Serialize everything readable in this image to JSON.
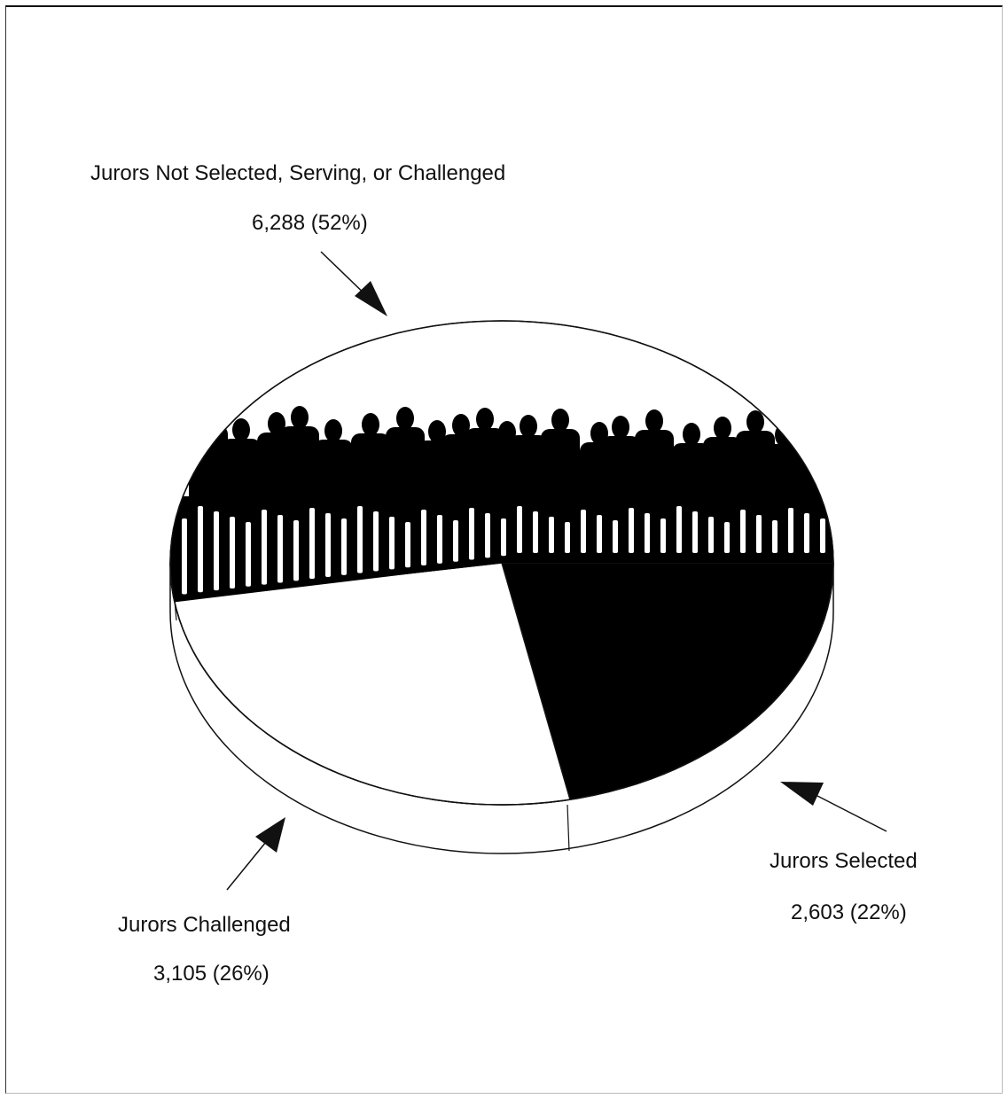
{
  "chart_data": {
    "type": "pie",
    "categories": [
      "Jurors Not Selected, Serving, or Challenged",
      "Jurors Selected",
      "Jurors Challenged"
    ],
    "values": [
      6288,
      2603,
      3105
    ],
    "percent_labels": [
      "(52%)",
      "(22%)",
      "(26%)"
    ],
    "value_labels": [
      "6,288",
      "2,603",
      "3,105"
    ],
    "slice_fill": [
      "people-silhouettes",
      "#000000",
      "#ffffff"
    ],
    "legend": "none",
    "style": "3d-tilted"
  },
  "labels": {
    "not_selected_title": "Jurors Not Selected, Serving, or Challenged",
    "not_selected_value": "6,288  (52%)",
    "selected_title": "Jurors Selected",
    "selected_value": "2,603  (22%)",
    "challenged_title": "Jurors Challenged",
    "challenged_value": "3,105  (26%)"
  },
  "colors": {
    "ink": "#000000",
    "paper": "#ffffff"
  }
}
